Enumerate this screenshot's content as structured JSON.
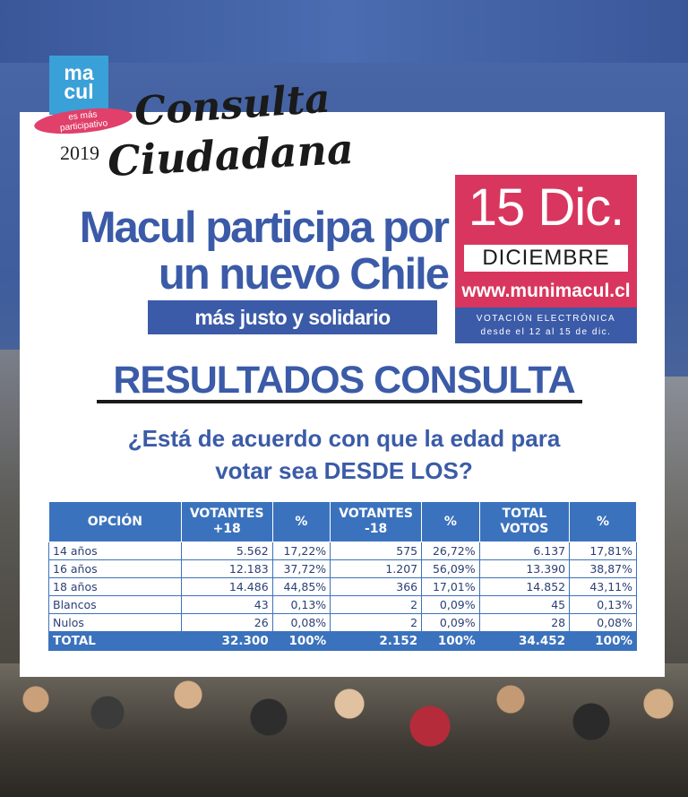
{
  "brand": {
    "logo_line1": "ma",
    "logo_line2": "cul",
    "tag_line1": "es más",
    "tag_line2": "participativo",
    "year": "2019",
    "script_line1": "Consulta",
    "script_line2": "Ciudadana"
  },
  "headline": {
    "line1": "Macul participa por",
    "line2": "un nuevo Chile",
    "subline": "más justo y solidario"
  },
  "date_box": {
    "big": "15 Dic.",
    "month": "DICIEMBRE",
    "url": "www.munimacul.cl",
    "vote_line1": "VOTACIÓN ELECTRÓNICA",
    "vote_line2": "desde el 12 al 15 de dic."
  },
  "results_title": "RESULTADOS CONSULTA",
  "question": {
    "line1": "¿Está de acuerdo con que la edad para",
    "line2": "votar sea DESDE LOS?"
  },
  "table": {
    "headers": [
      "OPCIÓN",
      "VOTANTES\n+18",
      "%",
      "VOTANTES\n-18",
      "%",
      "TOTAL\nVOTOS",
      "%"
    ],
    "rows": [
      [
        "14 años",
        "5.562",
        "17,22%",
        "575",
        "26,72%",
        "6.137",
        "17,81%"
      ],
      [
        "16 años",
        "12.183",
        "37,72%",
        "1.207",
        "56,09%",
        "13.390",
        "38,87%"
      ],
      [
        "18 años",
        "14.486",
        "44,85%",
        "366",
        "17,01%",
        "14.852",
        "43,11%"
      ],
      [
        "Blancos",
        "43",
        "0,13%",
        "2",
        "0,09%",
        "45",
        "0,13%"
      ],
      [
        "Nulos",
        "26",
        "0,08%",
        "2",
        "0,09%",
        "28",
        "0,08%"
      ]
    ],
    "total": [
      "TOTAL",
      "32.300",
      "100%",
      "2.152",
      "100%",
      "34.452",
      "100%"
    ]
  },
  "colors": {
    "brand_blue": "#3b5ba8",
    "table_blue": "#3b72bd",
    "brand_pink": "#d8365e",
    "logo_cyan": "#3aa0d8"
  }
}
